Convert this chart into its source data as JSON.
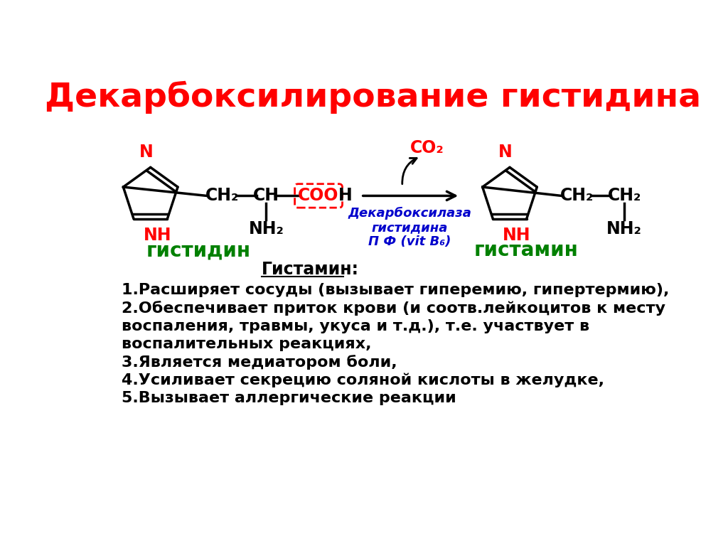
{
  "title": "Декарбоксилирование гистидина",
  "title_color": "#FF0000",
  "title_fontsize": 34,
  "bg_color": "#FFFFFF",
  "label_histidine": "гистидин",
  "label_histamine": "гистамин",
  "label_color_green": "#008000",
  "co2_color": "#FF0000",
  "enzyme_color": "#0000CC",
  "black": "#000000",
  "red": "#FF0000",
  "blue": "#0000CC",
  "green": "#008000"
}
